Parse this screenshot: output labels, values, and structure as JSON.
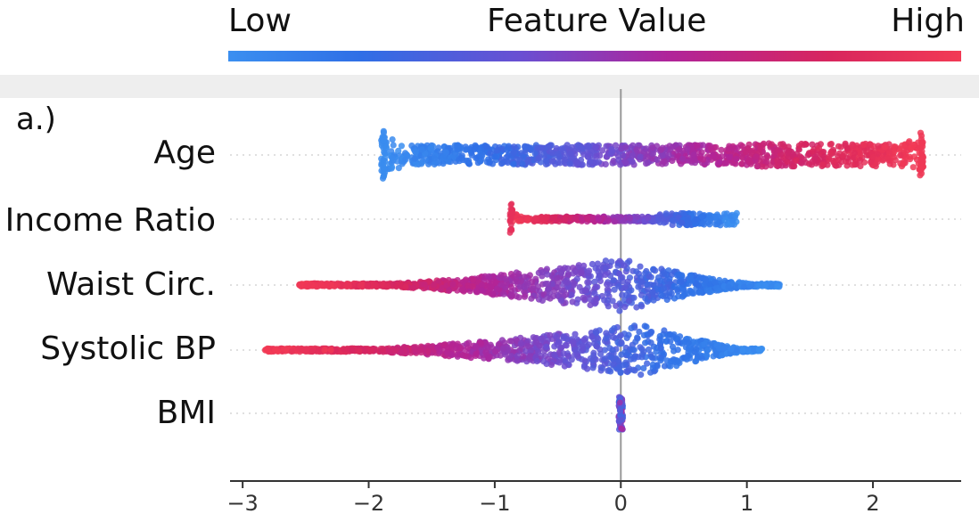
{
  "colorbar": {
    "low_label": "Low",
    "title": "Feature Value",
    "high_label": "High",
    "colors": [
      "#3b8ff0",
      "#2f6fe6",
      "#6a4fd2",
      "#b0249a",
      "#d8265e",
      "#f23a55"
    ]
  },
  "chart_data": {
    "type": "scatter",
    "subtype": "shap-beeswarm",
    "panel_label": "a.)",
    "xlabel": "",
    "ylabel": "",
    "xlim": [
      -3.1,
      2.7
    ],
    "xticks": [
      -3,
      -2,
      -1,
      0,
      1,
      2
    ],
    "xtick_labels": [
      "−3",
      "−2",
      "−1",
      "0",
      "1",
      "2"
    ],
    "features": [
      {
        "name": "Age",
        "min": -1.9,
        "max": 2.4,
        "spread": 0.26,
        "color_direction": "low-to-high"
      },
      {
        "name": "Income Ratio",
        "min": -0.88,
        "max": 0.92,
        "spread": 0.12,
        "color_direction": "high-to-low"
      },
      {
        "name": "Waist Circ.",
        "min": -2.55,
        "max": 1.27,
        "spread": 0.85,
        "color_direction": "high-to-low"
      },
      {
        "name": "Systolic BP",
        "min": -2.82,
        "max": 1.12,
        "spread": 0.85,
        "color_direction": "high-to-low"
      },
      {
        "name": "BMI",
        "min": -0.01,
        "max": 0.01,
        "spread": 0.8,
        "color_direction": "mixed"
      }
    ]
  }
}
